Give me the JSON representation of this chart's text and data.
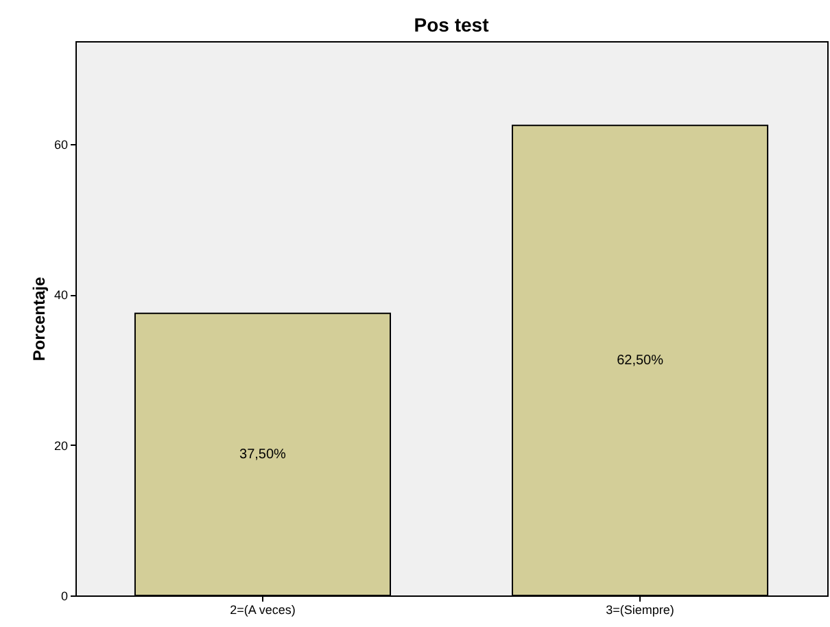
{
  "chart_data": {
    "type": "bar",
    "title": "Pos test",
    "ylabel": "Porcentaje",
    "categories": [
      "2=(A veces)",
      "3=(Siempre)"
    ],
    "values": [
      37.5,
      62.5
    ],
    "color": "#d3ce98",
    "value_labels": [
      "37,50%",
      "62,50%"
    ],
    "ylim": [
      0,
      73.7
    ],
    "yticks": [
      0,
      20,
      40,
      60
    ],
    "grid": false
  }
}
